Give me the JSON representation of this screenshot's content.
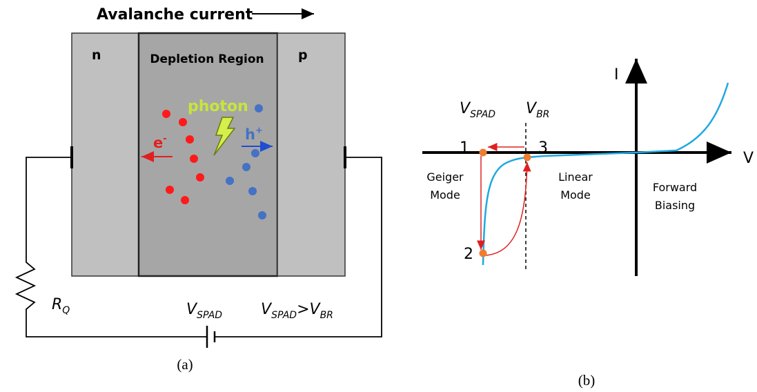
{
  "panel_a": {
    "heading": "Avalanche current",
    "regions": [
      "n",
      "Depletion Region",
      "p"
    ],
    "photon": "photon",
    "electron": {
      "main": "e",
      "sup": "-"
    },
    "hole": {
      "main": "h",
      "sup": "+"
    },
    "resistor": {
      "main": "R",
      "sub": "Q"
    },
    "source": {
      "main": "V",
      "sub": "SPAD"
    },
    "condition": {
      "left_main": "V",
      "left_sub": "SPAD",
      "op": ">",
      "right_main": "V",
      "right_sub": "BR"
    },
    "caption": "(a)"
  },
  "panel_b": {
    "y_axis": "I",
    "x_axis": "V",
    "spad_voltage": {
      "main": "V",
      "sub": "SPAD"
    },
    "breakdown_voltage": {
      "main": "V",
      "sub": "BR"
    },
    "points": [
      "1",
      "2",
      "3"
    ],
    "geiger_mode": [
      "Geiger",
      "Mode"
    ],
    "linear_mode": [
      "Linear",
      "Mode"
    ],
    "forward_biasing": [
      "Forward",
      "Biasing"
    ],
    "caption": "(b)"
  }
}
